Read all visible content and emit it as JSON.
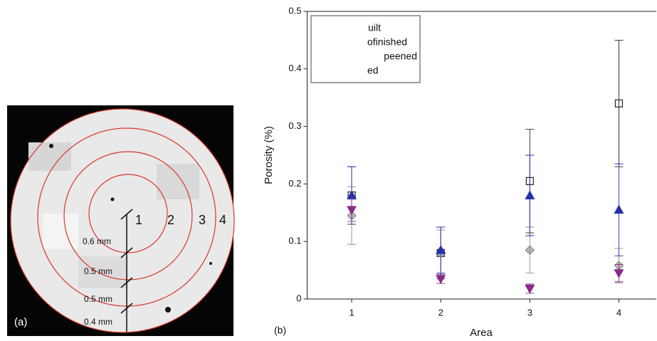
{
  "photo": {
    "panel_label": "(a)",
    "ring_labels": [
      "1",
      "2",
      "3",
      "4"
    ],
    "scale_labels": [
      "0.6 mm",
      "0.5 mm",
      "0.5 mm",
      "0.4 mm"
    ]
  },
  "chart_data": {
    "type": "scatter",
    "panel_label": "(b)",
    "x_label": "Area",
    "y_label": "Porosity (%)",
    "x": [
      1,
      2,
      3,
      4
    ],
    "xlim": [
      0.5,
      4.42
    ],
    "xticks": [
      1,
      2,
      3,
      4
    ],
    "ylim": [
      0,
      0.5
    ],
    "yticks": [
      0.0,
      0.1,
      0.2,
      0.3,
      0.4,
      0.5
    ],
    "series": [
      {
        "name": "uilt",
        "color": "#222222",
        "marker": "square",
        "values": [
          0.18,
          0.08,
          0.205,
          0.34
        ],
        "errors": [
          0.05,
          0.045,
          0.09,
          0.11
        ]
      },
      {
        "name": "ofinished",
        "color": "#8c8c8c",
        "marker": "diamond",
        "values": [
          0.145,
          0.08,
          0.085,
          0.058
        ],
        "errors": [
          0.05,
          0.04,
          0.04,
          0.03
        ]
      },
      {
        "name": "peened",
        "color": "#2432a8",
        "marker": "triangle-up",
        "values": [
          0.18,
          0.085,
          0.18,
          0.155
        ],
        "errors": [
          0.05,
          0.04,
          0.07,
          0.08
        ]
      },
      {
        "name": "ed",
        "color": "#8a2a8a",
        "marker": "triangle-down",
        "values": [
          0.155,
          0.035,
          0.018,
          0.045
        ],
        "errors": [
          0.02,
          0.008,
          0.008,
          0.015
        ]
      }
    ]
  }
}
